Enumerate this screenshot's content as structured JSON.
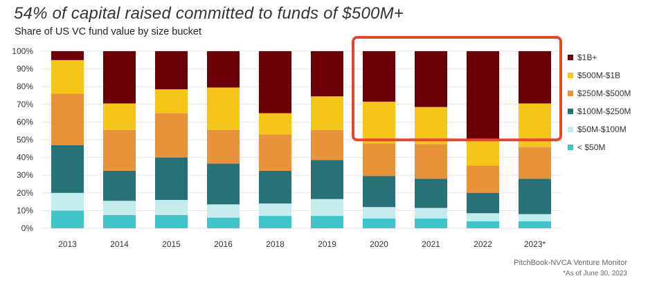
{
  "header": {
    "title": "54% of capital raised committed to funds of $500M+",
    "subtitle": "Share of US VC fund value by size bucket"
  },
  "footer": {
    "source": "PitchBook-NVCA Venture Monitor",
    "note": "*As of June 30, 2023"
  },
  "colors": {
    "1b_plus": "#6b0009",
    "500m_1b": "#f5c518",
    "250m_500m": "#e8923a",
    "100m_250m": "#267276",
    "50m_100m": "#c5ecec",
    "lt_50m": "#41c4c8",
    "highlight": "#e8452f",
    "grid": "#e6e6e6"
  },
  "chart_data": {
    "type": "bar",
    "stacked": true,
    "percent": true,
    "title": "54% of capital raised committed to funds of $500M+",
    "subtitle": "Share of US VC fund value by size bucket",
    "xlabel": "",
    "ylabel": "",
    "ylim": [
      0,
      100
    ],
    "yticks": [
      "0%",
      "10%",
      "20%",
      "30%",
      "40%",
      "50%",
      "60%",
      "70%",
      "80%",
      "90%",
      "100%"
    ],
    "categories": [
      "2013",
      "2014",
      "2015",
      "2016",
      "2018",
      "2019",
      "2020",
      "2021",
      "2022",
      "2023*"
    ],
    "series": [
      {
        "name": "< $50M",
        "key": "lt_50m",
        "values": [
          10,
          7.5,
          7.5,
          6,
          7,
          7,
          5.5,
          5.5,
          4,
          4
        ]
      },
      {
        "name": "$50M-$100M",
        "key": "50m_100m",
        "values": [
          10,
          8,
          8.5,
          7.5,
          7,
          9.5,
          6.5,
          6,
          4.5,
          4
        ]
      },
      {
        "name": "$100M-$250M",
        "key": "100m_250m",
        "values": [
          27,
          17,
          24,
          23,
          18.5,
          22,
          17.5,
          16.5,
          11.5,
          20
        ]
      },
      {
        "name": "$250M-$500M",
        "key": "250m_500m",
        "values": [
          29,
          23,
          25,
          19,
          20.5,
          17,
          18.5,
          19.5,
          15.5,
          18
        ]
      },
      {
        "name": "$500M-$1B",
        "key": "500m_1b",
        "values": [
          19,
          15,
          13.5,
          24,
          12,
          19,
          23.5,
          21,
          14,
          24.5
        ]
      },
      {
        "name": "$1B+",
        "key": "1b_plus",
        "values": [
          5,
          29.5,
          21.5,
          20.5,
          35,
          25.5,
          28.5,
          31.5,
          50.5,
          29.5
        ]
      }
    ],
    "legend_position": "right",
    "highlight": {
      "categories": [
        "2020",
        "2021",
        "2022",
        "2023*"
      ],
      "from_percent": 46,
      "to_percent": 100
    }
  }
}
